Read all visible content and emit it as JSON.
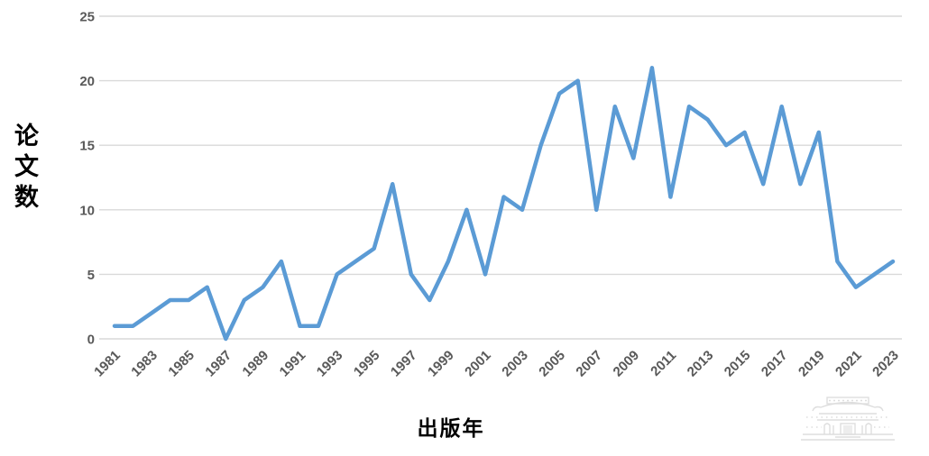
{
  "chart_data": {
    "type": "line",
    "title": "",
    "xlabel": "出版年",
    "ylabel": "论文数",
    "x": [
      1981,
      1982,
      1983,
      1984,
      1985,
      1986,
      1987,
      1988,
      1989,
      1990,
      1991,
      1992,
      1993,
      1994,
      1995,
      1996,
      1997,
      1998,
      1999,
      2000,
      2001,
      2002,
      2003,
      2004,
      2005,
      2006,
      2007,
      2008,
      2009,
      2010,
      2011,
      2012,
      2013,
      2014,
      2015,
      2016,
      2017,
      2018,
      2019,
      2020,
      2021,
      2022,
      2023
    ],
    "values": [
      1,
      1,
      2,
      3,
      3,
      4,
      0,
      3,
      4,
      6,
      1,
      1,
      5,
      6,
      7,
      12,
      5,
      3,
      6,
      10,
      5,
      11,
      10,
      15,
      19,
      20,
      10,
      18,
      14,
      21,
      11,
      18,
      17,
      15,
      16,
      12,
      18,
      12,
      16,
      6,
      4,
      5,
      6
    ],
    "ylim": [
      0,
      25
    ],
    "yticks": [
      0,
      5,
      10,
      15,
      20,
      25
    ],
    "xtick_labels": [
      "1981",
      "1983",
      "1985",
      "1987",
      "1989",
      "1991",
      "1993",
      "1995",
      "1997",
      "1999",
      "2001",
      "2003",
      "2005",
      "2007",
      "2009",
      "2011",
      "2013",
      "2015",
      "2017",
      "2019",
      "2021",
      "2023"
    ],
    "grid": true,
    "legend": "none",
    "line_color": "#5B9BD5",
    "gridline_color": "#D9D9D9",
    "tick_label_color": "#595959",
    "axis_title_color": "#000000"
  },
  "watermark": {
    "icon": "chinese-gate-building-watermark",
    "color": "#DEDEDE"
  }
}
